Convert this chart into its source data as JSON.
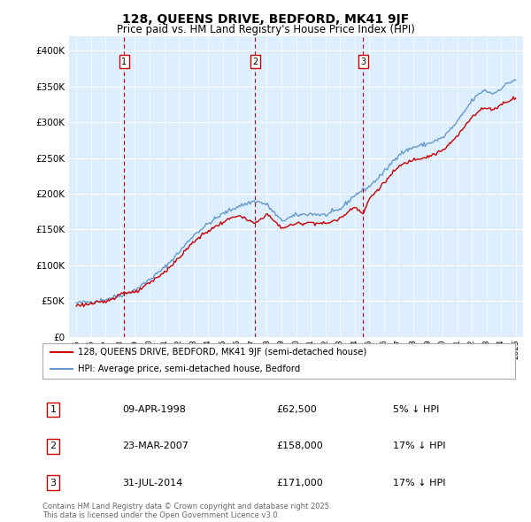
{
  "title": "128, QUEENS DRIVE, BEDFORD, MK41 9JF",
  "subtitle": "Price paid vs. HM Land Registry's House Price Index (HPI)",
  "legend_line1": "128, QUEENS DRIVE, BEDFORD, MK41 9JF (semi-detached house)",
  "legend_line2": "HPI: Average price, semi-detached house, Bedford",
  "sales": [
    {
      "num": 1,
      "date": "09-APR-1998",
      "price": 62500,
      "pct": "5%",
      "year": 1998.27
    },
    {
      "num": 2,
      "date": "23-MAR-2007",
      "price": 158000,
      "pct": "17%",
      "year": 2007.22
    },
    {
      "num": 3,
      "date": "31-JUL-2014",
      "price": 171000,
      "pct": "17%",
      "year": 2014.58
    }
  ],
  "table_rows": [
    [
      "1",
      "09-APR-1998",
      "£62,500",
      "5% ↓ HPI"
    ],
    [
      "2",
      "23-MAR-2007",
      "£158,000",
      "17% ↓ HPI"
    ],
    [
      "3",
      "31-JUL-2014",
      "£171,000",
      "17% ↓ HPI"
    ]
  ],
  "footnote": "Contains HM Land Registry data © Crown copyright and database right 2025.\nThis data is licensed under the Open Government Licence v3.0.",
  "red_color": "#cc0000",
  "blue_color": "#6699cc",
  "background_color": "#ddeeff",
  "plot_bg": "#ffffff",
  "ylim": [
    0,
    420000
  ],
  "xlim_start": 1994.5,
  "xlim_end": 2025.5
}
